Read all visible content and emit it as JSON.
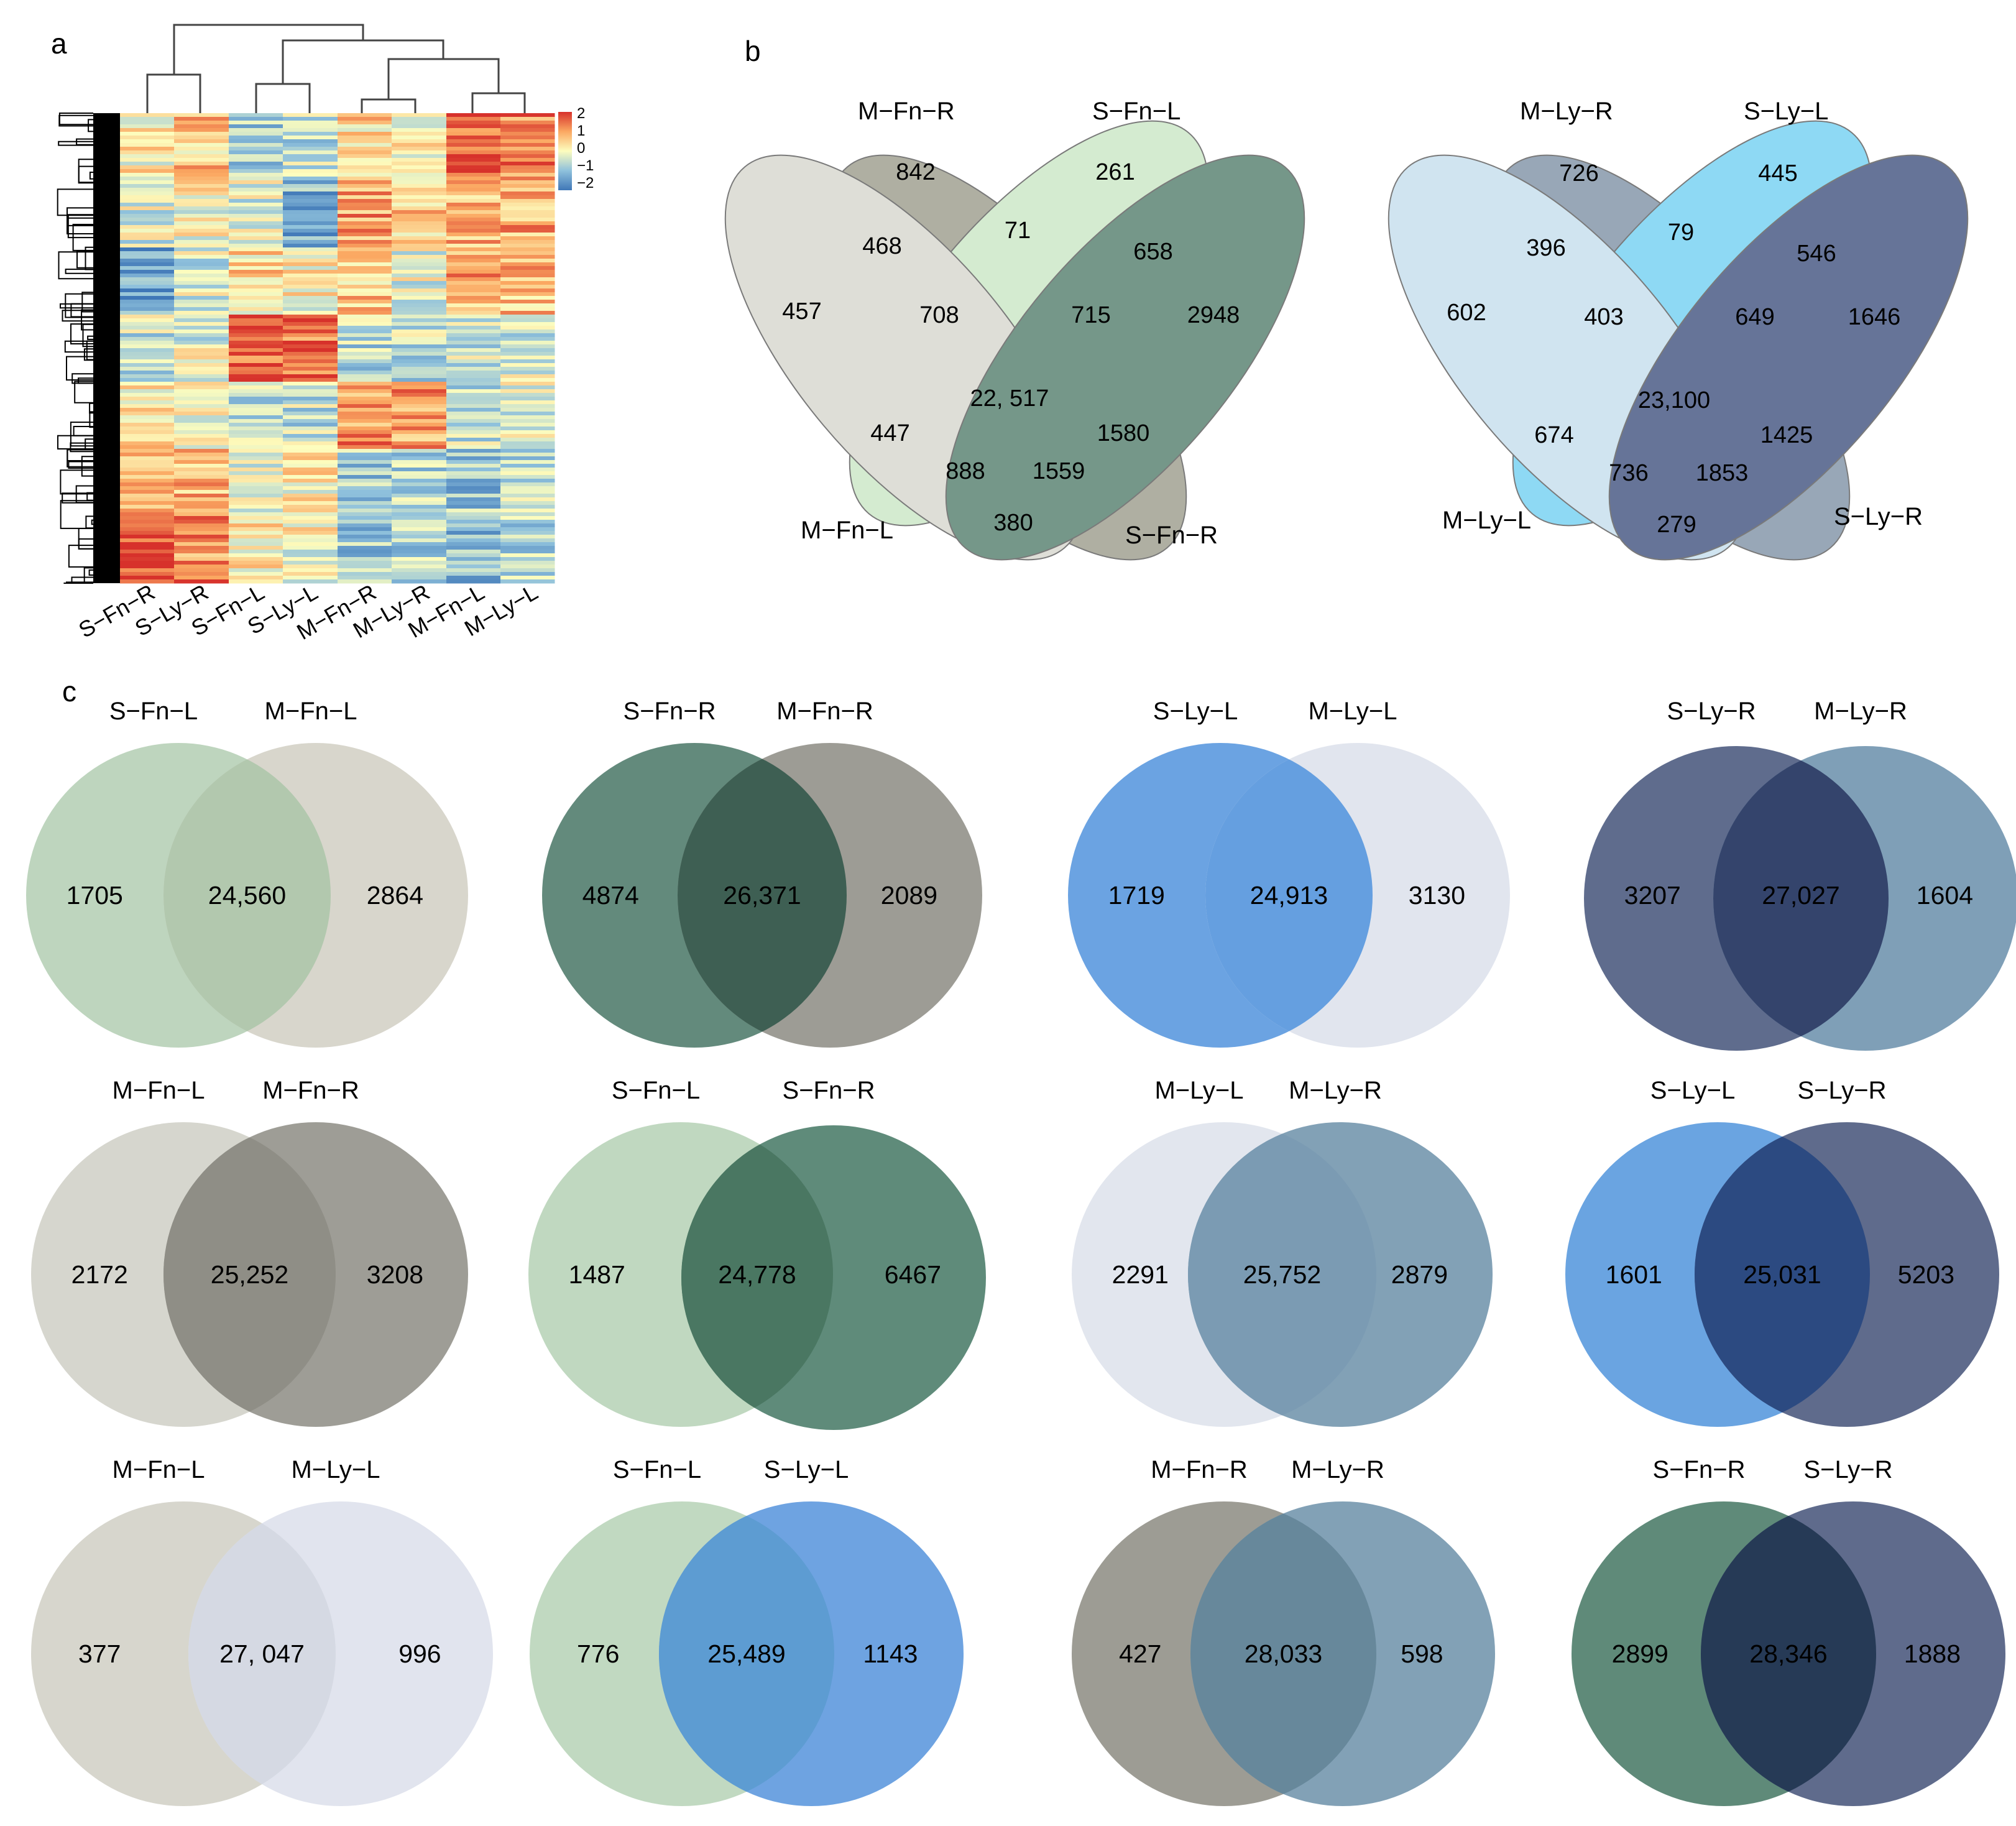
{
  "panels": {
    "a": "a",
    "b": "b",
    "c": "c"
  },
  "heatmap": {
    "columns": [
      "S−Fn−R",
      "S−Ly−R",
      "S−Fn−L",
      "S−Ly−L",
      "M−Fn−R",
      "M−Ly−R",
      "M−Fn−L",
      "M−Ly−L"
    ],
    "legend_ticks": [
      "2",
      "1",
      "0",
      "−1",
      "−2"
    ],
    "colors": [
      "#3f77b7",
      "#8fc1dc",
      "#fdfdbe",
      "#fba862",
      "#d7312b"
    ]
  },
  "venn4": [
    {
      "labels": [
        "M−Fn−R",
        "S−Fn−L",
        "M−Fn−L",
        "S−Fn−R"
      ],
      "colors": [
        "#999989",
        "#c8e6c4",
        "#d6d6cc",
        "#4f7a68"
      ],
      "values": [
        "842",
        "261",
        "457",
        "468",
        "71",
        "658",
        "2948",
        "708",
        "715",
        "22, 517",
        "447",
        "1580",
        "888",
        "1559",
        "380"
      ]
    },
    {
      "labels": [
        "M−Ly−R",
        "S−Ly−L",
        "M−Ly−L",
        "S−Ly−R"
      ],
      "colors": [
        "#7c8fa4",
        "#6fcff2",
        "#c4dded",
        "#3c4e7c"
      ],
      "values": [
        "726",
        "445",
        "602",
        "396",
        "79",
        "546",
        "1646",
        "403",
        "649",
        "23,100",
        "674",
        "1425",
        "736",
        "1853",
        "279"
      ]
    }
  ],
  "venn2": [
    {
      "labels": [
        "S−Fn−L",
        "M−Fn−L"
      ],
      "values": [
        "1705",
        "24,560",
        "2864"
      ],
      "colors": [
        "#bed5be",
        "#d8d6cc"
      ],
      "overlap": "#b2c8ae"
    },
    {
      "labels": [
        "S−Fn−R",
        "M−Fn−R"
      ],
      "values": [
        "4874",
        "26,371",
        "2089"
      ],
      "colors": [
        "#638a7c",
        "#9d9c95"
      ],
      "overlap": "#3e5f53"
    },
    {
      "labels": [
        "S−Ly−L",
        "M−Ly−L"
      ],
      "values": [
        "1719",
        "24,913",
        "3130"
      ],
      "colors": [
        "#6ba3e2",
        "#e1e5ee"
      ],
      "overlap": "#659fe0"
    },
    {
      "labels": [
        "S−Ly−R",
        "M−Ly−R"
      ],
      "values": [
        "3207",
        "27,027",
        "1604"
      ],
      "colors": [
        "#5f6c8d",
        "#7f9fb7"
      ],
      "overlap": "#34446c"
    },
    {
      "labels": [
        "M−Fn−L",
        "M−Fn−R"
      ],
      "values": [
        "2172",
        "25,252",
        "3208"
      ],
      "colors": [
        "#d6d6ce",
        "#9e9d96"
      ],
      "overlap": "#8f8e86"
    },
    {
      "labels": [
        "S−Fn−L",
        "S−Fn−R"
      ],
      "values": [
        "1487",
        "24,778",
        "6467"
      ],
      "colors": [
        "#c0d8c0",
        "#5f8b7a"
      ],
      "overlap": "#4a7762"
    },
    {
      "labels": [
        "M−Ly−L",
        "M−Ly−R"
      ],
      "values": [
        "2291",
        "25,752",
        "2879"
      ],
      "colors": [
        "#e2e6ee",
        "#82a1b6"
      ],
      "overlap": "#7b9bb3"
    },
    {
      "labels": [
        "S−Ly−L",
        "S−Ly−R"
      ],
      "values": [
        "1601",
        "25,031",
        "5203"
      ],
      "colors": [
        "#6aa4e1",
        "#5f6b8c"
      ],
      "overlap": "#2c4a81"
    },
    {
      "labels": [
        "M−Fn−L",
        "M−Ly−L"
      ],
      "values": [
        "377",
        "27, 047",
        "996"
      ],
      "colors": [
        "#d7d6cd",
        "#e1e4ee"
      ],
      "overlap": "#d5d9e3"
    },
    {
      "labels": [
        "S−Fn−L",
        "S−Ly−L"
      ],
      "values": [
        "776",
        "25,489",
        "1143"
      ],
      "colors": [
        "#c1d9c1",
        "#6ea3e1"
      ],
      "overlap": "#5d9cd2"
    },
    {
      "labels": [
        "M−Fn−R",
        "M−Ly−R"
      ],
      "values": [
        "427",
        "28,033",
        "598"
      ],
      "colors": [
        "#9d9c94",
        "#82a1b6"
      ],
      "overlap": "#67889b"
    },
    {
      "labels": [
        "S−Fn−R",
        "S−Ly−R"
      ],
      "values": [
        "2899",
        "28,346",
        "1888"
      ],
      "colors": [
        "#5f8a79",
        "#5f6b8c"
      ],
      "overlap": "#263a56"
    }
  ]
}
